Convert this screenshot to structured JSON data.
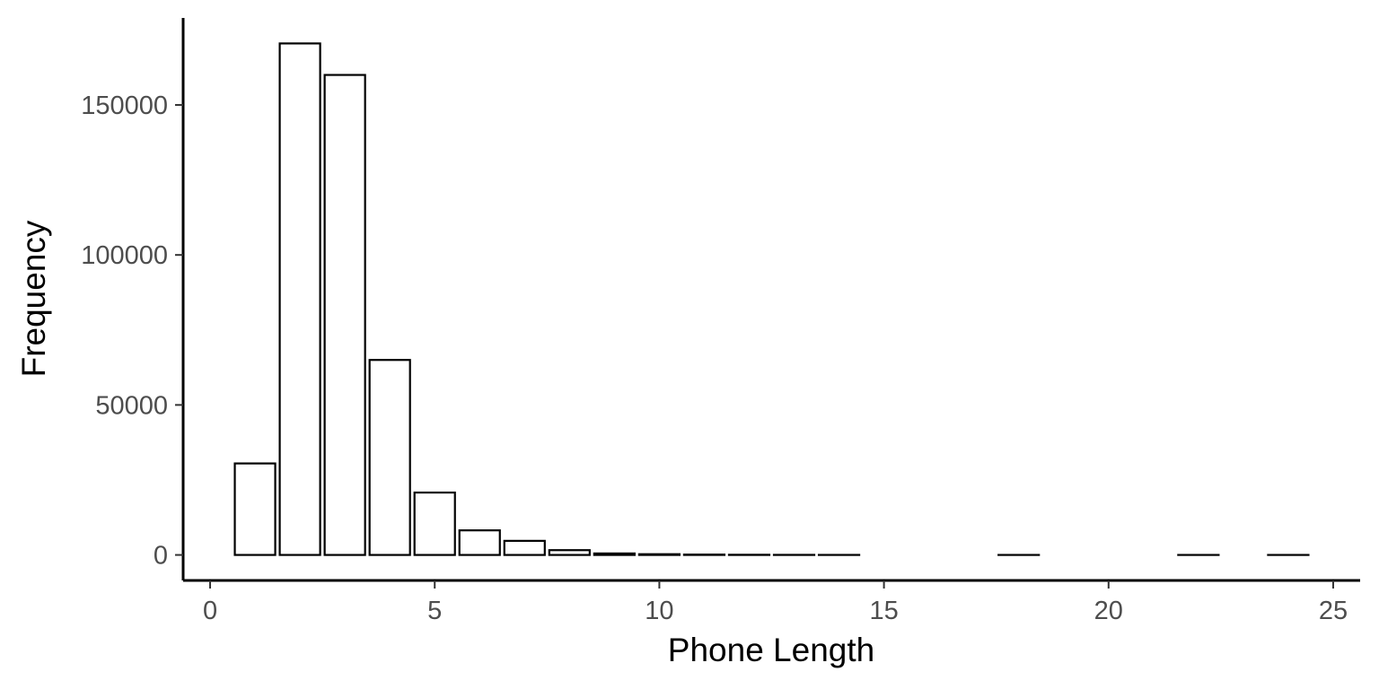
{
  "chart_data": {
    "type": "bar",
    "title": "",
    "xlabel": "Phone Length",
    "ylabel": "Frequency",
    "xlim": [
      -0.6,
      25.6
    ],
    "ylim": [
      -8500,
      179000
    ],
    "x_ticks": [
      0,
      5,
      10,
      15,
      20,
      25
    ],
    "y_ticks": [
      0,
      50000,
      100000,
      150000
    ],
    "grid": false,
    "bar_color": "#ffffff",
    "bar_edge_color": "#000000",
    "x": [
      1,
      2,
      3,
      4,
      5,
      6,
      7,
      8,
      9,
      10,
      11,
      12,
      13,
      14,
      18,
      22,
      24
    ],
    "values": [
      30500,
      170500,
      160000,
      65000,
      20800,
      8200,
      4700,
      1600,
      500,
      250,
      120,
      60,
      30,
      15,
      5,
      3,
      2
    ]
  }
}
